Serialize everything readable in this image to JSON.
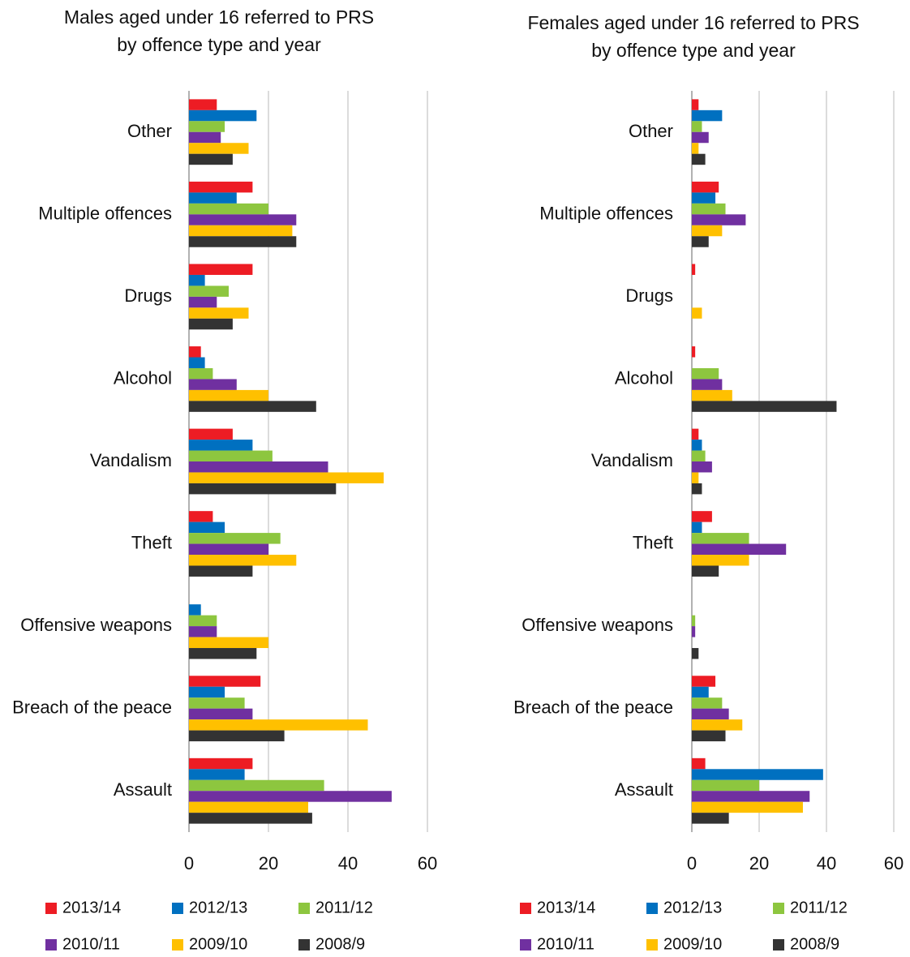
{
  "chart_data": [
    {
      "type": "bar",
      "orientation": "horizontal",
      "title": "Males aged under 16 referred to PRS by offence type and year",
      "categories": [
        "Other",
        "Multiple offences",
        "Drugs",
        "Alcohol",
        "Vandalism",
        "Theft",
        "Offensive weapons",
        "Breach of the peace",
        "Assault"
      ],
      "series": [
        {
          "name": "2013/14",
          "color": "#ed1c24",
          "values": [
            7,
            16,
            16,
            3,
            11,
            6,
            0,
            18,
            16
          ]
        },
        {
          "name": "2012/13",
          "color": "#0070c0",
          "values": [
            17,
            12,
            4,
            4,
            16,
            9,
            3,
            9,
            14
          ]
        },
        {
          "name": "2011/12",
          "color": "#8dc63f",
          "values": [
            9,
            20,
            10,
            6,
            21,
            23,
            7,
            14,
            34
          ]
        },
        {
          "name": "2010/11",
          "color": "#7030a0",
          "values": [
            8,
            27,
            7,
            12,
            35,
            20,
            7,
            16,
            51
          ]
        },
        {
          "name": "2009/10",
          "color": "#ffc000",
          "values": [
            15,
            26,
            15,
            20,
            49,
            27,
            20,
            45,
            30
          ]
        },
        {
          "name": "2008/9",
          "color": "#333333",
          "values": [
            11,
            27,
            11,
            32,
            37,
            16,
            17,
            24,
            31
          ]
        }
      ],
      "xlim": [
        0,
        60
      ],
      "xticks": [
        0,
        20,
        40,
        60
      ],
      "grid": true
    },
    {
      "type": "bar",
      "orientation": "horizontal",
      "title": "Females aged under 16 referred to PRS by offence type and year",
      "categories": [
        "Other",
        "Multiple offences",
        "Drugs",
        "Alcohol",
        "Vandalism",
        "Theft",
        "Offensive weapons",
        "Breach of the peace",
        "Assault"
      ],
      "series": [
        {
          "name": "2013/14",
          "color": "#ed1c24",
          "values": [
            2,
            8,
            1,
            1,
            2,
            6,
            0,
            7,
            4
          ]
        },
        {
          "name": "2012/13",
          "color": "#0070c0",
          "values": [
            9,
            7,
            0,
            0,
            3,
            3,
            0,
            5,
            39
          ]
        },
        {
          "name": "2011/12",
          "color": "#8dc63f",
          "values": [
            3,
            10,
            0,
            8,
            4,
            17,
            1,
            9,
            20
          ]
        },
        {
          "name": "2010/11",
          "color": "#7030a0",
          "values": [
            5,
            16,
            0,
            9,
            6,
            28,
            1,
            11,
            35
          ]
        },
        {
          "name": "2009/10",
          "color": "#ffc000",
          "values": [
            2,
            9,
            3,
            12,
            2,
            17,
            0,
            15,
            33
          ]
        },
        {
          "name": "2008/9",
          "color": "#333333",
          "values": [
            4,
            5,
            0,
            43,
            3,
            8,
            2,
            10,
            11
          ]
        }
      ],
      "xlim": [
        0,
        60
      ],
      "xticks": [
        0,
        20,
        40,
        60
      ],
      "grid": true
    }
  ]
}
